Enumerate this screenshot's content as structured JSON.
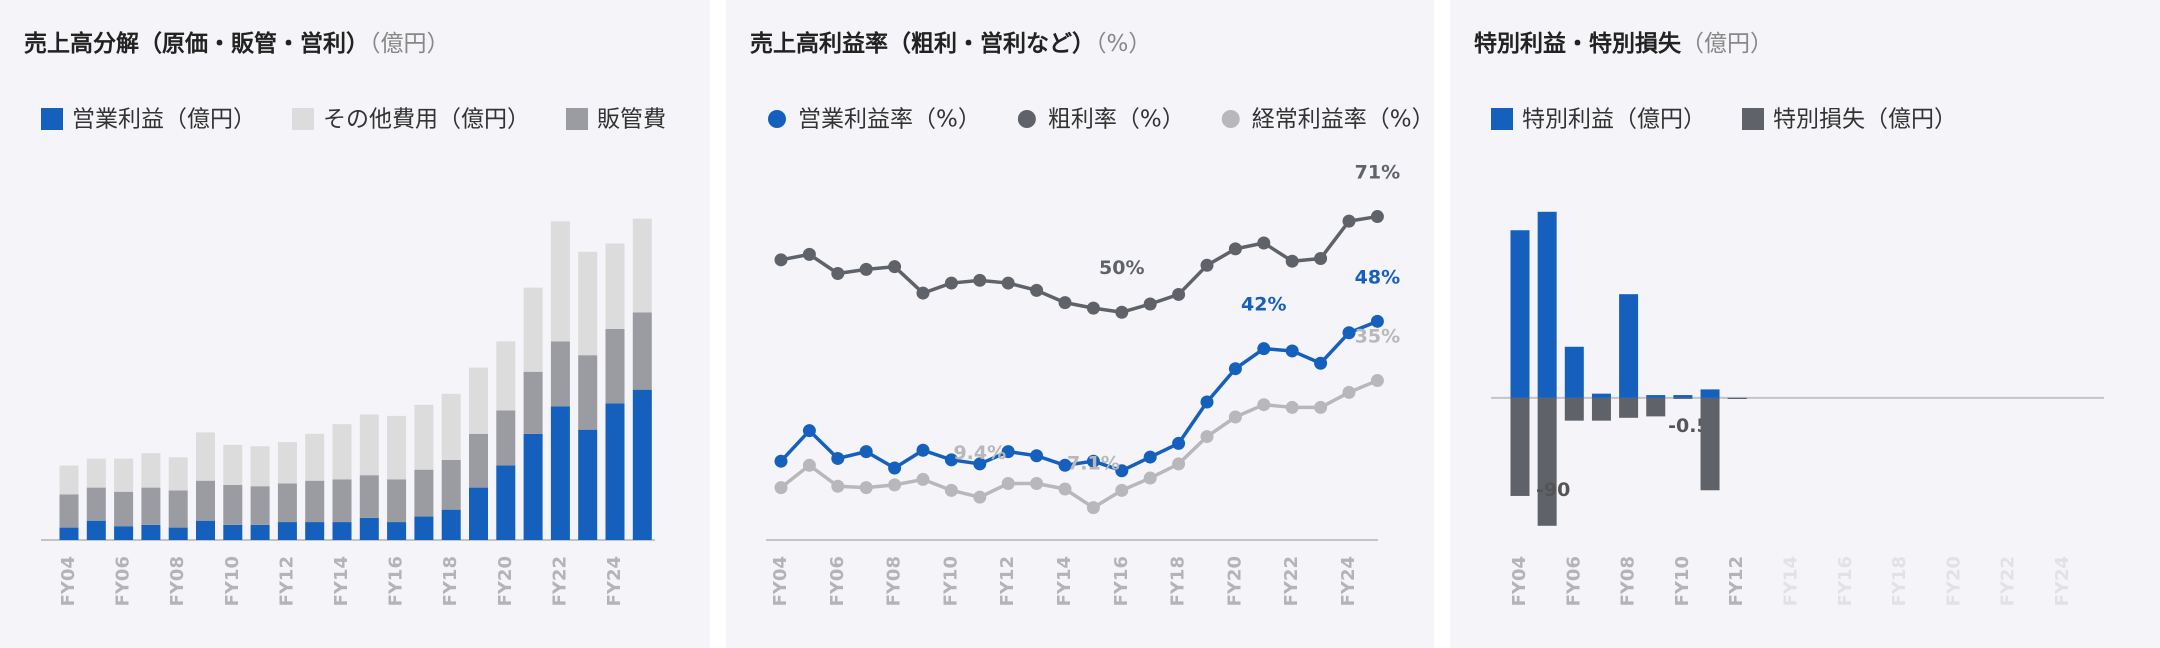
{
  "chart_data": [
    {
      "type": "stacked_bar",
      "title": "売上高分解（原価・販管・営利）",
      "unit": "（億円）",
      "categories": [
        "FY04",
        null,
        "FY06",
        null,
        "FY08",
        null,
        "FY10",
        null,
        "FY12",
        null,
        "FY14",
        null,
        "FY16",
        null,
        "FY18",
        null,
        "FY20",
        null,
        "FY22",
        null,
        "FY24",
        null
      ],
      "series": [
        {
          "name": "営業利益（億円）",
          "color": "#1560bd",
          "values": [
            9,
            14,
            10,
            11,
            9,
            14,
            11,
            11,
            13,
            13,
            13,
            16,
            13,
            17,
            22,
            38,
            54,
            77,
            97,
            80,
            99,
            109
          ]
        },
        {
          "name": "販管費",
          "color": "#9a9ca1",
          "values": [
            24,
            24,
            25,
            27,
            27,
            29,
            29,
            28,
            28,
            30,
            31,
            31,
            31,
            34,
            36,
            39,
            40,
            45,
            47,
            54,
            54,
            56
          ]
        },
        {
          "name": "その他費用（億円）",
          "color": "#dcdcdd",
          "values": [
            21,
            21,
            24,
            25,
            24,
            35,
            29,
            29,
            30,
            34,
            40,
            44,
            46,
            47,
            48,
            48,
            50,
            61,
            87,
            75,
            62,
            68
          ]
        }
      ],
      "legend_order": [
        0,
        2,
        1
      ],
      "ylim": [
        0,
        240
      ]
    },
    {
      "type": "line",
      "title": "売上高利益率（粗利・営利など）",
      "unit": "（%）",
      "categories": [
        "FY04",
        null,
        "FY06",
        null,
        "FY08",
        null,
        "FY10",
        null,
        "FY12",
        null,
        "FY14",
        null,
        "FY16",
        null,
        "FY18",
        null,
        "FY20",
        null,
        "FY22",
        null,
        "FY24",
        null
      ],
      "series": [
        {
          "name": "営業利益率（%）",
          "color": "#1560bd",
          "values": [
            17.3,
            24.0,
            17.9,
            19.4,
            15.8,
            19.7,
            17.6,
            16.7,
            19.4,
            18.5,
            16.4,
            17.3,
            15.2,
            18.2,
            21.2,
            30.3,
            37.6,
            42,
            41.5,
            38.8,
            45.5,
            48
          ],
          "value_labels": [
            null,
            null,
            null,
            null,
            null,
            null,
            null,
            null,
            null,
            null,
            null,
            null,
            null,
            null,
            null,
            null,
            null,
            "42%",
            null,
            null,
            null,
            "48%"
          ]
        },
        {
          "name": "粗利率（%）",
          "color": "#5f6369",
          "values": [
            61.5,
            62.7,
            58.5,
            59.4,
            60,
            54.2,
            56.4,
            57,
            56.4,
            54.8,
            52.1,
            50.9,
            50,
            51.8,
            53.9,
            60.3,
            63.9,
            65.2,
            61.2,
            61.8,
            70,
            71
          ],
          "value_labels": [
            null,
            null,
            null,
            null,
            null,
            null,
            null,
            null,
            null,
            null,
            null,
            null,
            "50%",
            null,
            null,
            null,
            null,
            null,
            null,
            null,
            null,
            "71%"
          ]
        },
        {
          "name": "経常利益率（%）",
          "color": "#b8b8ba",
          "values": [
            11.5,
            16.4,
            11.8,
            11.5,
            12.1,
            13.3,
            10.9,
            9.4,
            12.4,
            12.4,
            11.2,
            7.1,
            10.9,
            13.6,
            16.7,
            22.7,
            27,
            29.7,
            29.1,
            29.1,
            32.4,
            35
          ],
          "value_labels": [
            null,
            null,
            null,
            null,
            null,
            null,
            null,
            "9.4%",
            null,
            null,
            null,
            "7.1%",
            null,
            null,
            null,
            null,
            null,
            null,
            null,
            null,
            null,
            "35%"
          ]
        }
      ],
      "ylim": [
        0,
        72
      ]
    },
    {
      "type": "bar",
      "title": "特別利益・特別損失",
      "unit": "（億円）",
      "categories": [
        "FY04",
        null,
        "FY06",
        null,
        "FY08",
        null,
        "FY10",
        null,
        "FY12",
        null,
        "FY14",
        null,
        "FY16",
        null,
        "FY18",
        null,
        "FY20",
        null,
        "FY22",
        null,
        "FY24",
        null
      ],
      "series": [
        {
          "name": "特別利益（億円）",
          "color": "#1560bd",
          "values": [
            118,
            131,
            36,
            3,
            73,
            2,
            2,
            6,
            0,
            null,
            null,
            null,
            null,
            null,
            null,
            null,
            null,
            null,
            null,
            null,
            null,
            null
          ]
        },
        {
          "name": "特別損失（億円）",
          "color": "#5f6369",
          "values": [
            -69,
            -90,
            -16,
            -16,
            -14,
            -13,
            -0.5,
            -65,
            0,
            null,
            null,
            null,
            null,
            null,
            null,
            null,
            null,
            null,
            null,
            null,
            null,
            null
          ],
          "value_labels": [
            null,
            "-90",
            null,
            null,
            null,
            null,
            "-0.5",
            null,
            null,
            null,
            null,
            null,
            null,
            null,
            null,
            null,
            null,
            null,
            null,
            null,
            null,
            null
          ]
        }
      ],
      "ylim": [
        -100,
        140
      ]
    }
  ]
}
